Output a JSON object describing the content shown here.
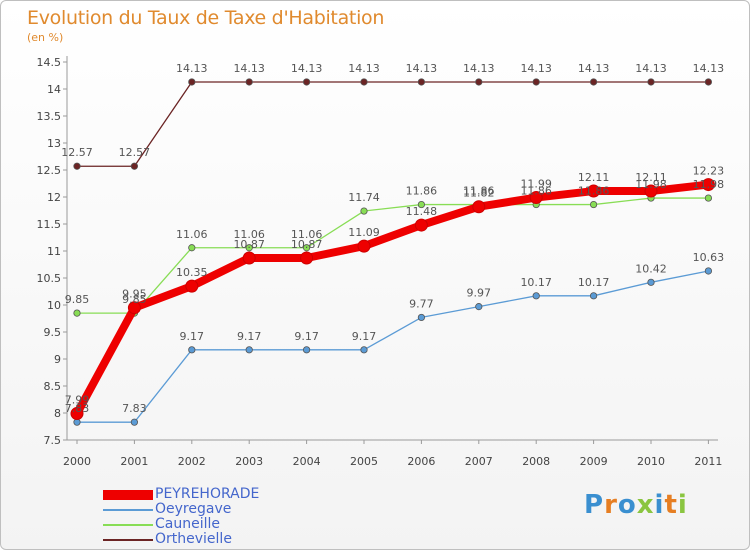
{
  "title": "Evolution du Taux de Taxe d'Habitation",
  "unit_label": "(en %)",
  "brand": "Proxiti",
  "chart_data": {
    "type": "line",
    "title": "Evolution du Taux de Taxe d'Habitation",
    "ylabel": "(en %)",
    "xlabel": "",
    "ylim": [
      7.5,
      14.5
    ],
    "y_ticks": [
      "7.5",
      "8",
      "8.5",
      "9",
      "9.5",
      "10",
      "10.5",
      "11",
      "11.5",
      "12",
      "12.5",
      "13",
      "13.5",
      "14",
      "14.5"
    ],
    "x": [
      "2000",
      "2001",
      "2002",
      "2003",
      "2004",
      "2005",
      "2006",
      "2007",
      "2008",
      "2009",
      "2010",
      "2011"
    ],
    "series": [
      {
        "name": "Orthevielle",
        "color": "#6b2424",
        "values": [
          12.57,
          12.57,
          14.13,
          14.13,
          14.13,
          14.13,
          14.13,
          14.13,
          14.13,
          14.13,
          14.13,
          14.13
        ],
        "labels": [
          "12.57",
          "12.57",
          "14.13",
          "14.13",
          "14.13",
          "14.13",
          "14.13",
          "14.13",
          "14.13",
          "14.13",
          "14.13",
          "14.13"
        ]
      },
      {
        "name": "Cauneille",
        "color": "#88dd55",
        "values": [
          9.85,
          9.85,
          11.06,
          11.06,
          11.06,
          11.74,
          11.86,
          11.86,
          11.86,
          11.86,
          11.98,
          11.98
        ],
        "labels": [
          "9.85",
          "9.85",
          "11.06",
          "11.06",
          "11.06",
          "11.74",
          "11.86",
          "11.86",
          "11.86",
          "11.86",
          "11.98",
          "11.98"
        ]
      },
      {
        "name": "Oeyregave",
        "color": "#5b9bd5",
        "values": [
          7.83,
          7.83,
          9.17,
          9.17,
          9.17,
          9.17,
          9.77,
          9.97,
          10.17,
          10.17,
          10.42,
          10.63
        ],
        "labels": [
          "7.83",
          "7.83",
          "9.17",
          "9.17",
          "9.17",
          "9.17",
          "9.77",
          "9.97",
          "10.17",
          "10.17",
          "10.42",
          "10.63"
        ]
      },
      {
        "name": "PEYREHORADE",
        "color": "#ee0000",
        "values": [
          7.99,
          9.95,
          10.35,
          10.87,
          10.87,
          11.09,
          11.48,
          11.82,
          11.99,
          12.11,
          12.11,
          12.23
        ],
        "labels": [
          "7.99",
          "9.95",
          "10.35",
          "10.87",
          "10.87",
          "11.09",
          "11.48",
          "11.82",
          "11.99",
          "12.11",
          "12.11",
          "12.23"
        ]
      }
    ],
    "legend": [
      "PEYREHORADE",
      "Oeyregave",
      "Cauneille",
      "Orthevielle"
    ],
    "grid": false
  }
}
